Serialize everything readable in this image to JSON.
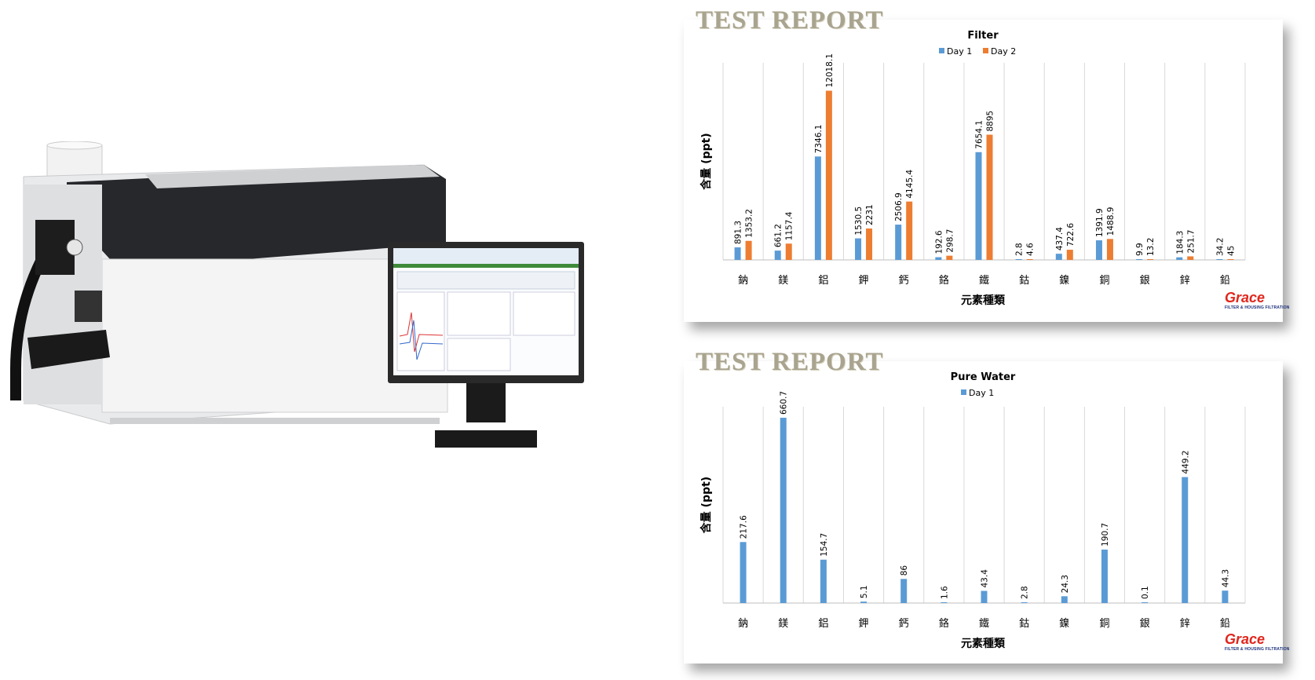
{
  "watermark": "TEST REPORT",
  "logo": {
    "text": "Grace",
    "tagline": "FILTER & HOUSING FILTRATION"
  },
  "colors": {
    "day1": "#5b9bd5",
    "day2": "#ed7d31"
  },
  "chart_data": [
    {
      "type": "bar",
      "title": "Filter",
      "xlabel": "元素種類",
      "ylabel": "含量 (ppt)",
      "ylim": [
        0,
        14000
      ],
      "grid": "vertical",
      "legend": "top",
      "categories": [
        "鈉",
        "鎂",
        "鋁",
        "鉀",
        "鈣",
        "鉻",
        "鐵",
        "鈷",
        "鎳",
        "銅",
        "銀",
        "鋅",
        "鉛"
      ],
      "series": [
        {
          "name": "Day 1",
          "values": [
            891.3,
            661.2,
            7346.1,
            1530.5,
            2506.9,
            192.6,
            7654.1,
            2.8,
            437.4,
            1391.9,
            9.9,
            184.3,
            34.2
          ]
        },
        {
          "name": "Day 2",
          "values": [
            1353.2,
            1157.4,
            12018.1,
            2231,
            4145.4,
            298.7,
            8895,
            4.6,
            722.6,
            1488.9,
            13.2,
            251.7,
            45
          ]
        }
      ]
    },
    {
      "type": "bar",
      "title": "Pure Water",
      "xlabel": "元素種類",
      "ylabel": "含量 (ppt)",
      "ylim": [
        0,
        700
      ],
      "grid": "vertical",
      "legend": "top",
      "categories": [
        "鈉",
        "鎂",
        "鋁",
        "鉀",
        "鈣",
        "鉻",
        "鐵",
        "鈷",
        "鎳",
        "銅",
        "銀",
        "鋅",
        "鉛"
      ],
      "series": [
        {
          "name": "Day 1",
          "values": [
            217.6,
            660.7,
            154.7,
            5.1,
            86,
            1.6,
            43.4,
            2.8,
            24.3,
            190.7,
            0.1,
            449.2,
            44.3
          ]
        }
      ]
    }
  ]
}
